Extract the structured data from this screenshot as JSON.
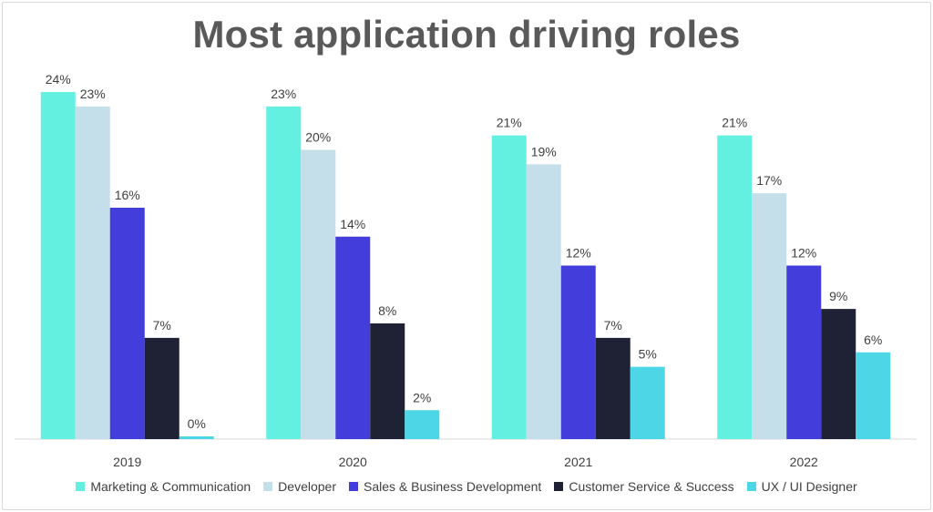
{
  "chart_data": {
    "type": "bar",
    "title": "Most application driving roles",
    "xlabel": "",
    "ylabel": "",
    "categories": [
      "2019",
      "2020",
      "2021",
      "2022"
    ],
    "ylim": [
      0,
      24
    ],
    "grid": false,
    "legend_position": "bottom",
    "value_suffix": "%",
    "series": [
      {
        "name": "Marketing & Communication",
        "color": "#64F0E1",
        "values": [
          24,
          23,
          21,
          21
        ]
      },
      {
        "name": "Developer",
        "color": "#C5DFEA",
        "values": [
          23,
          20,
          19,
          17
        ]
      },
      {
        "name": "Sales & Business Development",
        "color": "#423DDB",
        "values": [
          16,
          14,
          12,
          12
        ]
      },
      {
        "name": "Customer Service & Success",
        "color": "#1F2135",
        "values": [
          7,
          8,
          7,
          9
        ]
      },
      {
        "name": "UX / UI Designer",
        "color": "#4DD7E6",
        "values": [
          0,
          2,
          5,
          6
        ]
      }
    ]
  }
}
